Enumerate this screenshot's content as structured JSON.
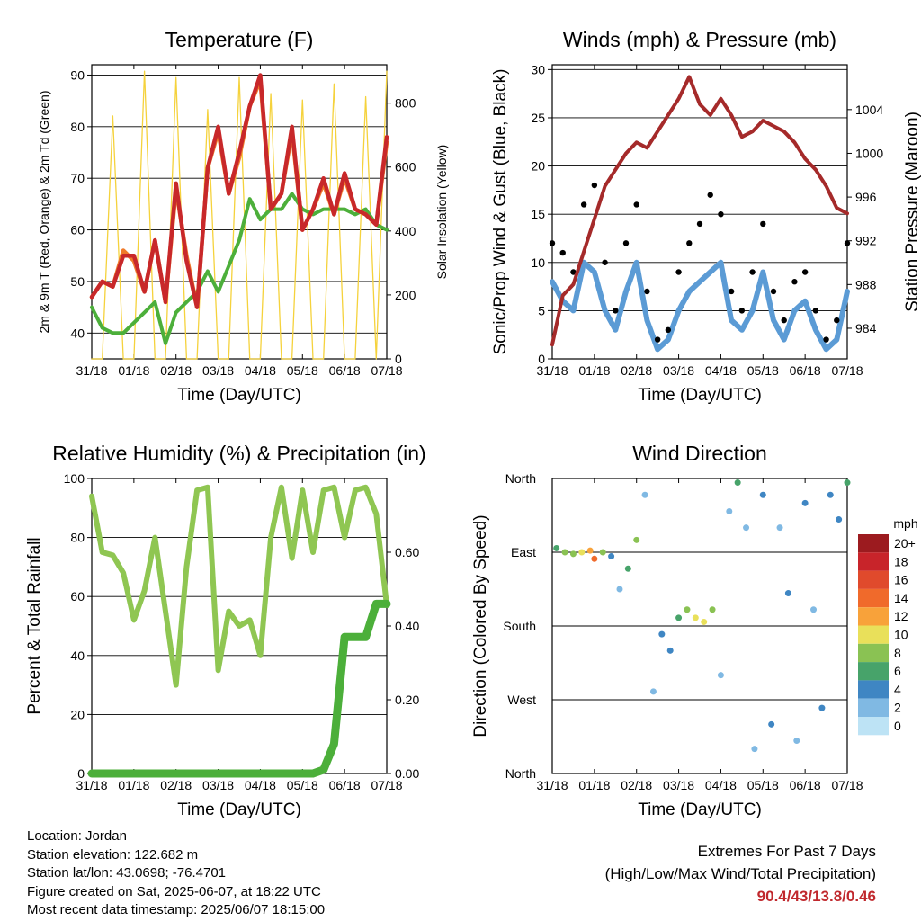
{
  "x_tick_labels": [
    "31/18",
    "01/18",
    "02/18",
    "03/18",
    "04/18",
    "05/18",
    "06/18",
    "07/18"
  ],
  "x_axis_label": "Time (Day/UTC)",
  "chart_data": [
    {
      "type": "line",
      "title": "Temperature (F)",
      "xlabel": "Time (Day/UTC)",
      "ylabel": "2m & 9m T (Red, Orange) & 2m Td (Green)",
      "y2label": "Solar Insolation (Yellow)",
      "ylim": [
        35,
        92
      ],
      "y2lim": [
        0,
        920
      ],
      "yticks": [
        40,
        50,
        60,
        70,
        80,
        90
      ],
      "y2ticks": [
        0,
        200,
        400,
        600,
        800
      ],
      "x": [
        0,
        0.25,
        0.5,
        0.75,
        1,
        1.25,
        1.5,
        1.75,
        2,
        2.25,
        2.5,
        2.75,
        3,
        3.25,
        3.5,
        3.75,
        4,
        4.25,
        4.5,
        4.75,
        5,
        5.25,
        5.5,
        5.75,
        6,
        6.25,
        6.5,
        6.75,
        7
      ],
      "series": [
        {
          "name": "2m T",
          "color": "#c8282a",
          "values": [
            47,
            50,
            49,
            55,
            55,
            48,
            58,
            46,
            69,
            54,
            45,
            72,
            80,
            67,
            75,
            84,
            90,
            64,
            67,
            80,
            60,
            64,
            70,
            63,
            71,
            64,
            63,
            61,
            78
          ]
        },
        {
          "name": "9m T",
          "color": "#f07a2a",
          "values": [
            47,
            50,
            49,
            56,
            54,
            48,
            58,
            46,
            68,
            55,
            45,
            72,
            79,
            67,
            74,
            84,
            89,
            64,
            67,
            79,
            60,
            64,
            69,
            63,
            70,
            64,
            63,
            61,
            77
          ]
        },
        {
          "name": "2m Td",
          "color": "#4caf3a",
          "values": [
            45,
            41,
            40,
            40,
            42,
            44,
            46,
            38,
            44,
            46,
            48,
            52,
            48,
            53,
            58,
            66,
            62,
            64,
            64,
            67,
            64,
            63,
            64,
            64,
            64,
            63,
            64,
            61,
            60
          ]
        },
        {
          "name": "Solar Insolation",
          "color": "#f5d23c",
          "axis": "y2",
          "values": [
            0,
            0,
            760,
            0,
            0,
            900,
            0,
            0,
            880,
            0,
            0,
            780,
            0,
            0,
            880,
            0,
            0,
            830,
            0,
            0,
            810,
            0,
            0,
            860,
            0,
            0,
            820,
            0,
            900
          ]
        }
      ]
    },
    {
      "type": "line",
      "title": "Winds (mph) & Pressure (mb)",
      "xlabel": "Time (Day/UTC)",
      "ylabel": "Sonic/Prop Wind & Gust (Blue, Black)",
      "y2label": "Station Pressure (Maroon)",
      "ylim": [
        0,
        30.5
      ],
      "y2lim": [
        981.2,
        1008.1
      ],
      "yticks": [
        0,
        5,
        10,
        15,
        20,
        25,
        30
      ],
      "y2ticks": [
        984,
        988,
        992,
        996,
        1000,
        1004
      ],
      "x": [
        0,
        0.25,
        0.5,
        0.75,
        1,
        1.25,
        1.5,
        1.75,
        2,
        2.25,
        2.5,
        2.75,
        3,
        3.25,
        3.5,
        3.75,
        4,
        4.25,
        4.5,
        4.75,
        5,
        5.25,
        5.5,
        5.75,
        6,
        6.25,
        6.5,
        6.75,
        7
      ],
      "series": [
        {
          "name": "Wind",
          "color": "#5b9bd5",
          "values": [
            8,
            6,
            5,
            10,
            9,
            5,
            3,
            7,
            10,
            4,
            1,
            2,
            5,
            7,
            8,
            9,
            10,
            4,
            3,
            5,
            9,
            4,
            2,
            5,
            6,
            3,
            1,
            2,
            7
          ]
        },
        {
          "name": "Gust",
          "color": "#000000",
          "values": [
            12,
            11,
            9,
            16,
            18,
            10,
            5,
            12,
            16,
            7,
            2,
            3,
            9,
            12,
            14,
            17,
            15,
            7,
            5,
            9,
            14,
            7,
            4,
            8,
            9,
            5,
            2,
            4,
            12
          ]
        },
        {
          "name": "Pressure",
          "color": "#a52a2a",
          "axis": "y2",
          "values": [
            982.5,
            987,
            988,
            991,
            994,
            997,
            998.5,
            1000,
            1001,
            1000.5,
            1002,
            1003.5,
            1005,
            1007,
            1004.5,
            1003.5,
            1005,
            1003.5,
            1001.5,
            1002,
            1003,
            1002.5,
            1002,
            1001,
            999.5,
            998.5,
            997,
            995,
            994.5
          ]
        }
      ]
    },
    {
      "type": "line",
      "title": "Relative Humidity (%) & Precipitation (in)",
      "xlabel": "Time (Day/UTC)",
      "ylabel": "Percent & Total Rainfall",
      "ylim": [
        0,
        100
      ],
      "y2lim": [
        0,
        0.8
      ],
      "yticks": [
        0,
        20,
        40,
        60,
        80,
        100
      ],
      "y2ticks": [
        0.0,
        0.2,
        0.4,
        0.6
      ],
      "x": [
        0,
        0.25,
        0.5,
        0.75,
        1,
        1.25,
        1.5,
        1.75,
        2,
        2.25,
        2.5,
        2.75,
        3,
        3.25,
        3.5,
        3.75,
        4,
        4.25,
        4.5,
        4.75,
        5,
        5.25,
        5.5,
        5.75,
        6,
        6.25,
        6.5,
        6.75,
        7
      ],
      "series": [
        {
          "name": "Relative Humidity",
          "color": "#8fc652",
          "values": [
            94,
            75,
            74,
            68,
            52,
            62,
            80,
            55,
            30,
            70,
            96,
            97,
            35,
            55,
            50,
            52,
            40,
            80,
            97,
            73,
            96,
            75,
            96,
            97,
            80,
            96,
            97,
            88,
            57
          ]
        },
        {
          "name": "Total Precipitation",
          "color": "#4caf3a",
          "axis": "y2",
          "values": [
            0,
            0,
            0,
            0,
            0,
            0,
            0,
            0,
            0,
            0,
            0,
            0,
            0,
            0,
            0,
            0,
            0,
            0,
            0,
            0,
            0,
            0,
            0.01,
            0.08,
            0.37,
            0.37,
            0.37,
            0.46,
            0.46
          ]
        }
      ]
    },
    {
      "type": "scatter",
      "title": "Wind Direction",
      "xlabel": "Time (Day/UTC)",
      "ylabel": "Direction (Colored By Speed)",
      "yticks": [
        "North",
        "West",
        "South",
        "East",
        "North"
      ],
      "ylim": [
        0,
        360
      ],
      "legend": {
        "title": "mph",
        "labels": [
          "20+",
          "18",
          "16",
          "14",
          "12",
          "10",
          "8",
          "6",
          "4",
          "2",
          "0"
        ],
        "colors": [
          "#9c1b1f",
          "#c8242a",
          "#e04a2c",
          "#f06a2b",
          "#f8a23a",
          "#e9e05a",
          "#8ac253",
          "#47a36a",
          "#3f86c3",
          "#80b9e3",
          "#bde3f5"
        ]
      },
      "points": [
        {
          "x": 0.1,
          "dir": 275,
          "speed": 6
        },
        {
          "x": 0.3,
          "dir": 270,
          "speed": 8
        },
        {
          "x": 0.5,
          "dir": 268,
          "speed": 8
        },
        {
          "x": 0.7,
          "dir": 270,
          "speed": 10
        },
        {
          "x": 0.9,
          "dir": 272,
          "speed": 12
        },
        {
          "x": 1.0,
          "dir": 262,
          "speed": 14
        },
        {
          "x": 1.2,
          "dir": 270,
          "speed": 8
        },
        {
          "x": 1.4,
          "dir": 265,
          "speed": 4
        },
        {
          "x": 1.6,
          "dir": 225,
          "speed": 2
        },
        {
          "x": 1.8,
          "dir": 250,
          "speed": 6
        },
        {
          "x": 2.0,
          "dir": 285,
          "speed": 8
        },
        {
          "x": 2.2,
          "dir": 340,
          "speed": 2
        },
        {
          "x": 2.4,
          "dir": 100,
          "speed": 2
        },
        {
          "x": 2.6,
          "dir": 170,
          "speed": 4
        },
        {
          "x": 2.8,
          "dir": 150,
          "speed": 4
        },
        {
          "x": 3.0,
          "dir": 190,
          "speed": 6
        },
        {
          "x": 3.2,
          "dir": 200,
          "speed": 8
        },
        {
          "x": 3.4,
          "dir": 190,
          "speed": 10
        },
        {
          "x": 3.6,
          "dir": 185,
          "speed": 10
        },
        {
          "x": 3.8,
          "dir": 200,
          "speed": 8
        },
        {
          "x": 4.0,
          "dir": 120,
          "speed": 2
        },
        {
          "x": 4.2,
          "dir": 320,
          "speed": 2
        },
        {
          "x": 4.4,
          "dir": 355,
          "speed": 6
        },
        {
          "x": 4.6,
          "dir": 300,
          "speed": 2
        },
        {
          "x": 4.8,
          "dir": 30,
          "speed": 2
        },
        {
          "x": 5.0,
          "dir": 340,
          "speed": 4
        },
        {
          "x": 5.2,
          "dir": 60,
          "speed": 4
        },
        {
          "x": 5.4,
          "dir": 300,
          "speed": 2
        },
        {
          "x": 5.6,
          "dir": 220,
          "speed": 4
        },
        {
          "x": 5.8,
          "dir": 40,
          "speed": 2
        },
        {
          "x": 6.0,
          "dir": 330,
          "speed": 4
        },
        {
          "x": 6.2,
          "dir": 200,
          "speed": 2
        },
        {
          "x": 6.4,
          "dir": 80,
          "speed": 4
        },
        {
          "x": 6.6,
          "dir": 340,
          "speed": 4
        },
        {
          "x": 6.8,
          "dir": 310,
          "speed": 4
        },
        {
          "x": 7.0,
          "dir": 355,
          "speed": 6
        }
      ]
    }
  ],
  "footer": {
    "location": "Location: Jordan",
    "elevation": "Station elevation: 122.682 m",
    "latlon": "Station lat/lon: 43.0698; -76.4701",
    "created": "Figure created on Sat, 2025-06-07, at 18:22 UTC",
    "recent": "Most recent data timestamp: 2025/06/07 18:15:00"
  },
  "extremes": {
    "line1": "Extremes For Past 7 Days",
    "line2": "(High/Low/Max Wind/Total Precipitation)",
    "values": "90.4/43/13.8/0.46"
  }
}
